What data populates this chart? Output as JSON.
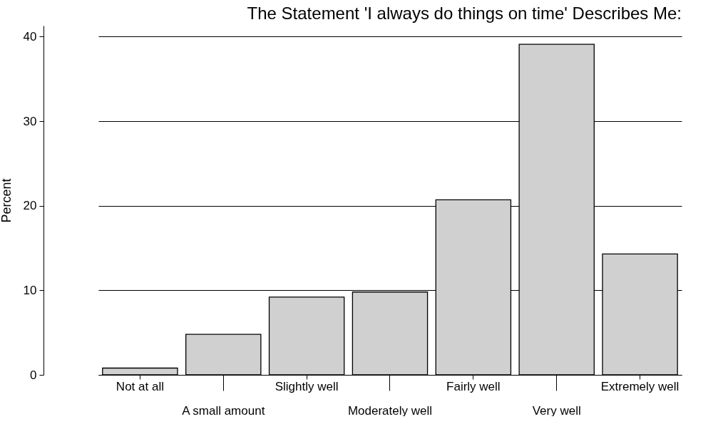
{
  "chart_data": {
    "type": "bar",
    "title": "The Statement 'I always do things on time' Describes Me:",
    "ylabel": "Percent",
    "categories": [
      "Not at all",
      "A small amount",
      "Slightly well",
      "Moderately well",
      "Fairly well",
      "Very well",
      "Extremely well"
    ],
    "values": [
      0.8,
      4.8,
      9.2,
      9.8,
      20.7,
      39.1,
      14.3
    ],
    "color": "#d0d0d0",
    "ylim": [
      0,
      41.3
    ],
    "yticks": [
      0,
      10,
      20,
      30,
      40
    ],
    "grid": "y"
  }
}
